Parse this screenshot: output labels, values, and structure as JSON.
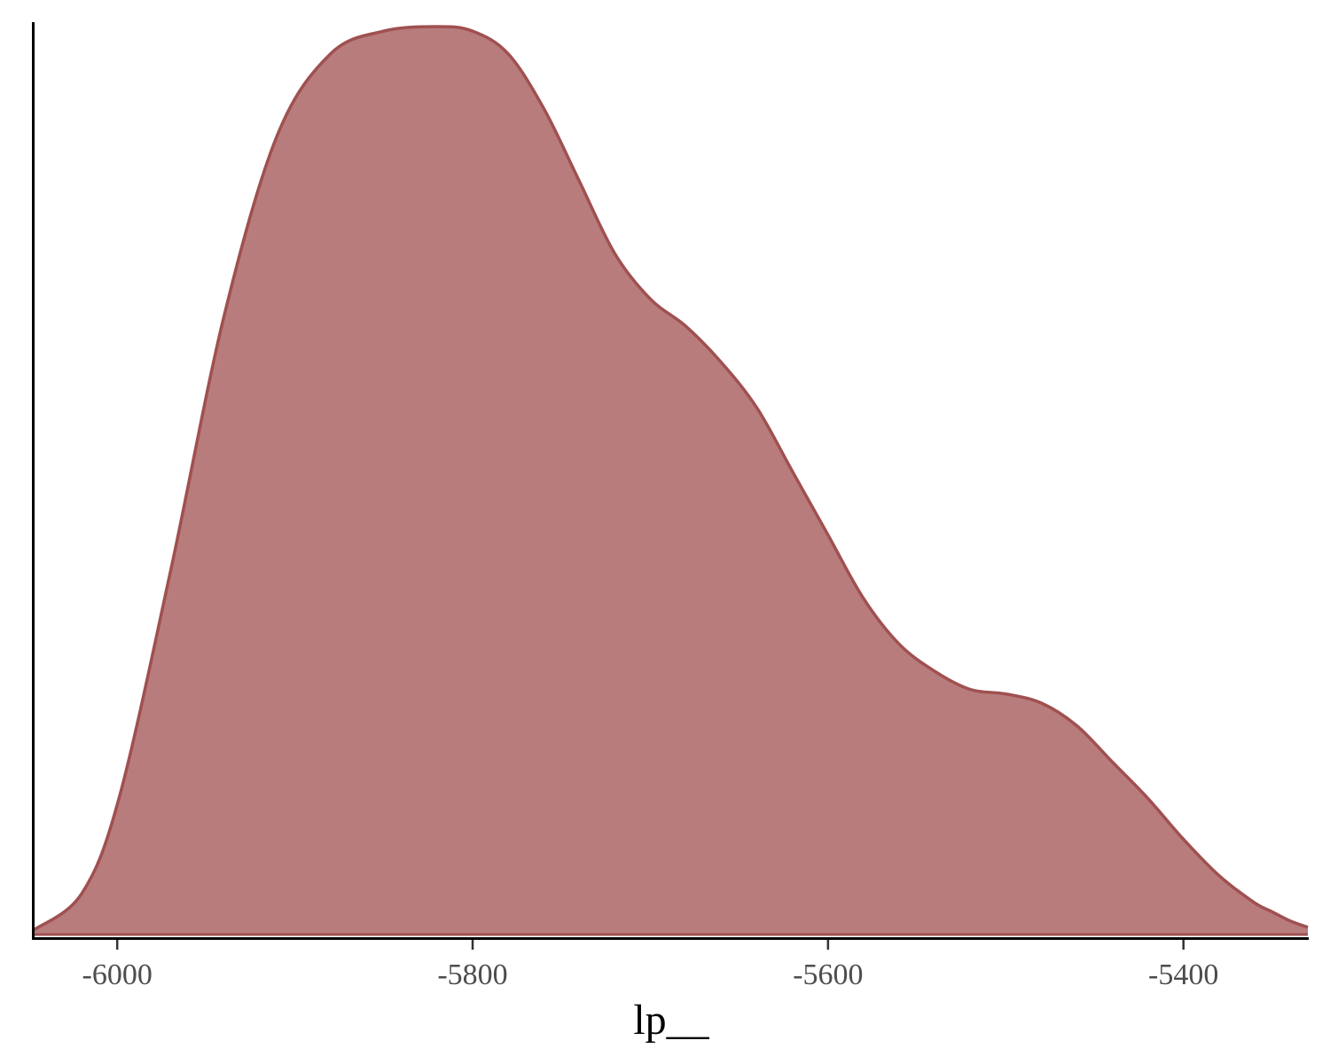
{
  "chart_data": {
    "type": "area",
    "title": "",
    "xlabel": "lp__",
    "ylabel": "",
    "xlim": [
      -6047,
      -5330
    ],
    "x_ticks": [
      -6000,
      -5800,
      -5600,
      -5400
    ],
    "x_tick_labels": [
      "-6000",
      "-5800",
      "-5600",
      "-5400"
    ],
    "y_axis_labels_shown": false,
    "grid": false,
    "legend": "none",
    "fill_color": "#b87c7c",
    "line_color": "#a05050",
    "series": [
      {
        "x": [
          -6047,
          -6020,
          -5999,
          -5970,
          -5940,
          -5910,
          -5880,
          -5850,
          -5820,
          -5800,
          -5780,
          -5760,
          -5740,
          -5720,
          -5700,
          -5680,
          -5660,
          -5640,
          -5620,
          -5600,
          -5580,
          -5560,
          -5540,
          -5520,
          -5500,
          -5480,
          -5460,
          -5440,
          -5420,
          -5400,
          -5380,
          -5360,
          -5350,
          -5340,
          -5330
        ],
        "y": [
          0.005,
          0.045,
          0.15,
          0.4,
          0.68,
          0.88,
          0.97,
          0.995,
          1.0,
          0.995,
          0.97,
          0.91,
          0.83,
          0.75,
          0.7,
          0.67,
          0.63,
          0.58,
          0.51,
          0.44,
          0.37,
          0.32,
          0.29,
          0.27,
          0.265,
          0.255,
          0.23,
          0.19,
          0.15,
          0.105,
          0.065,
          0.035,
          0.025,
          0.015,
          0.008
        ]
      }
    ]
  }
}
